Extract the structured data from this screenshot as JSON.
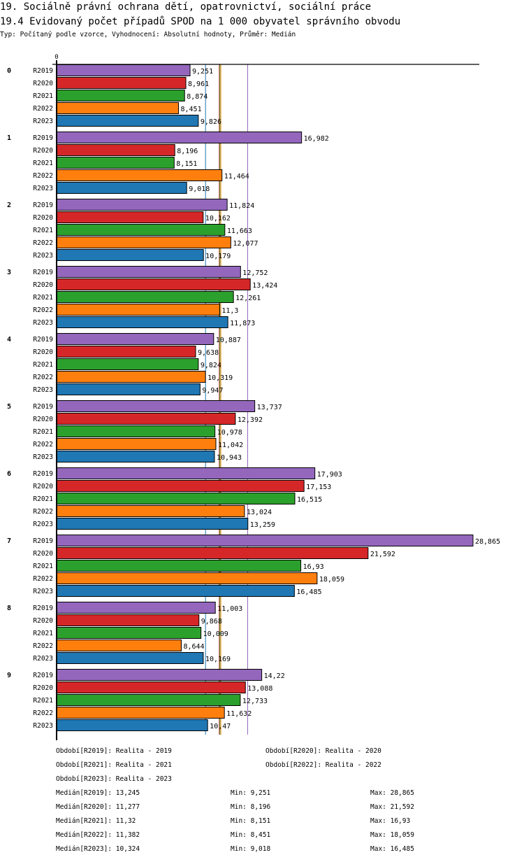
{
  "header": {
    "title": "19. Sociálně právní ochrana dětí, opatrovnictví, sociální práce",
    "subtitle": "19.4 Evidovaný počet případů SPOD na 1 000 obyvatel správního obvodu",
    "meta": "Typ: Počítaný podle vzorce, Vyhodnocení: Absolutní hodnoty, Průměr: Medián"
  },
  "chart_data": {
    "type": "bar",
    "orientation": "horizontal",
    "title": "19.4 Evidovaný počet případů SPOD na 1 000 obyvatel správního obvodu",
    "xlabel": "",
    "ylabel": "",
    "axis_zero_label": "0",
    "xlim": [
      0,
      28.865
    ],
    "grid": false,
    "legend": "bottom",
    "categories": [
      "0",
      "1",
      "2",
      "3",
      "4",
      "5",
      "6",
      "7",
      "8",
      "9"
    ],
    "series": [
      {
        "name": "R2019",
        "color": "#9467bd",
        "values": [
          9.251,
          16.982,
          11.824,
          12.752,
          10.887,
          13.737,
          17.903,
          28.865,
          11.003,
          14.22
        ],
        "labels": [
          "9,251",
          "16,982",
          "11,824",
          "12,752",
          "10,887",
          "13,737",
          "17,903",
          "28,865",
          "11,003",
          "14,22"
        ]
      },
      {
        "name": "R2020",
        "color": "#d62728",
        "values": [
          8.961,
          8.196,
          10.162,
          13.424,
          9.638,
          12.392,
          17.153,
          21.592,
          9.868,
          13.088
        ],
        "labels": [
          "8,961",
          "8,196",
          "10,162",
          "13,424",
          "9,638",
          "12,392",
          "17,153",
          "21,592",
          "9,868",
          "13,088"
        ]
      },
      {
        "name": "R2021",
        "color": "#2ca02c",
        "values": [
          8.874,
          8.151,
          11.663,
          12.261,
          9.824,
          10.978,
          16.515,
          16.93,
          10.009,
          12.733
        ],
        "labels": [
          "8,874",
          "8,151",
          "11,663",
          "12,261",
          "9,824",
          "10,978",
          "16,515",
          "16,93",
          "10,009",
          "12,733"
        ]
      },
      {
        "name": "R2022",
        "color": "#ff7f0e",
        "values": [
          8.451,
          11.464,
          12.077,
          11.3,
          10.319,
          11.042,
          13.024,
          18.059,
          8.644,
          11.632
        ],
        "labels": [
          "8,451",
          "11,464",
          "12,077",
          "11,3",
          "10,319",
          "11,042",
          "13,024",
          "18,059",
          "8,644",
          "11,632"
        ]
      },
      {
        "name": "R2023",
        "color": "#1f77b4",
        "values": [
          9.826,
          9.018,
          10.179,
          11.873,
          9.947,
          10.943,
          13.259,
          16.485,
          10.169,
          10.47
        ],
        "labels": [
          "9,826",
          "9,018",
          "10,179",
          "11,873",
          "9,947",
          "10,943",
          "13,259",
          "16,485",
          "10,169",
          "10,47"
        ]
      }
    ],
    "medians": [
      {
        "series": "R2019",
        "value": 13.245
      },
      {
        "series": "R2020",
        "value": 11.277
      },
      {
        "series": "R2021",
        "value": 11.32
      },
      {
        "series": "R2022",
        "value": 11.382
      },
      {
        "series": "R2023",
        "value": 10.324
      }
    ]
  },
  "legend": {
    "periods": [
      "Období[R2019]: Realita - 2019",
      "Období[R2020]: Realita - 2020",
      "Období[R2021]: Realita - 2021",
      "Období[R2022]: Realita - 2022",
      "Období[R2023]: Realita - 2023"
    ],
    "stats": [
      {
        "median": "Medián[R2019]: 13,245",
        "min": "Min: 9,251",
        "max": "Max: 28,865"
      },
      {
        "median": "Medián[R2020]: 11,277",
        "min": "Min: 8,196",
        "max": "Max: 21,592"
      },
      {
        "median": "Medián[R2021]: 11,32",
        "min": "Min: 8,151",
        "max": "Max: 16,93"
      },
      {
        "median": "Medián[R2022]: 11,382",
        "min": "Min: 8,451",
        "max": "Max: 18,059"
      },
      {
        "median": "Medián[R2023]: 10,324",
        "min": "Min: 9,018",
        "max": "Max: 16,485"
      }
    ]
  }
}
